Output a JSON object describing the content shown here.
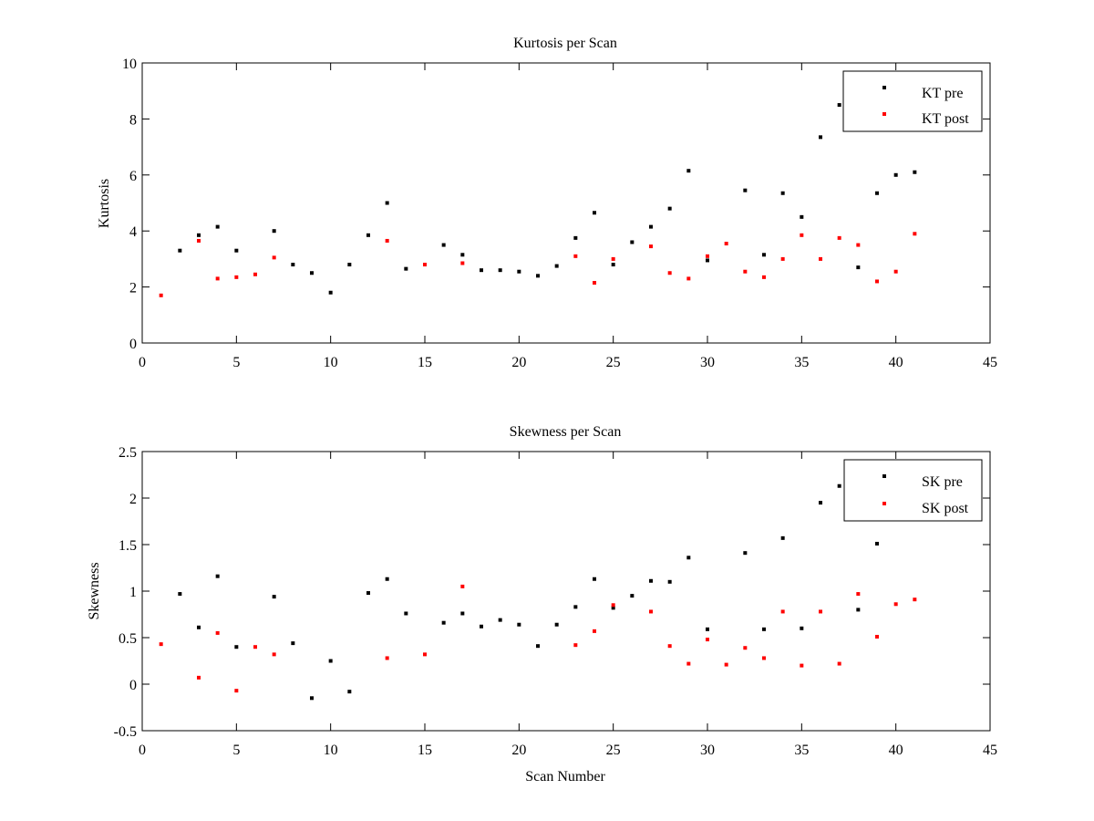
{
  "chart_data": [
    {
      "type": "scatter",
      "title": "Kurtosis per Scan",
      "xlabel": "",
      "ylabel": "Kurtosis",
      "xlim": [
        0,
        45
      ],
      "ylim": [
        0,
        10
      ],
      "xticks": [
        0,
        5,
        10,
        15,
        20,
        25,
        30,
        35,
        40,
        45
      ],
      "yticks": [
        0,
        2,
        4,
        6,
        8,
        10
      ],
      "xtick_labels": [
        "0",
        "5",
        "10",
        "15",
        "20",
        "25",
        "30",
        "35",
        "40",
        "45"
      ],
      "ytick_labels": [
        "0",
        "2",
        "4",
        "6",
        "8",
        "10"
      ],
      "grid": false,
      "legend_position": "top-right",
      "series": [
        {
          "name": "KT pre",
          "color": "#000000",
          "points": [
            [
              2,
              3.3
            ],
            [
              3,
              3.85
            ],
            [
              4,
              4.15
            ],
            [
              5,
              3.3
            ],
            [
              7,
              4.0
            ],
            [
              8,
              2.8
            ],
            [
              9,
              2.5
            ],
            [
              10,
              1.8
            ],
            [
              11,
              2.8
            ],
            [
              12,
              3.85
            ],
            [
              13,
              5.0
            ],
            [
              14,
              2.65
            ],
            [
              16,
              3.5
            ],
            [
              17,
              3.15
            ],
            [
              18,
              2.6
            ],
            [
              19,
              2.6
            ],
            [
              20,
              2.55
            ],
            [
              21,
              2.4
            ],
            [
              22,
              2.75
            ],
            [
              23,
              3.75
            ],
            [
              24,
              4.65
            ],
            [
              25,
              2.8
            ],
            [
              26,
              3.6
            ],
            [
              27,
              4.15
            ],
            [
              28,
              4.8
            ],
            [
              29,
              6.15
            ],
            [
              30,
              2.95
            ],
            [
              32,
              5.45
            ],
            [
              33,
              3.15
            ],
            [
              34,
              5.35
            ],
            [
              35,
              4.5
            ],
            [
              36,
              7.35
            ],
            [
              37,
              8.5
            ],
            [
              38,
              2.7
            ],
            [
              39,
              5.35
            ],
            [
              40,
              6.0
            ],
            [
              41,
              6.1
            ]
          ]
        },
        {
          "name": "KT post",
          "color": "#ff0000",
          "points": [
            [
              1,
              1.7
            ],
            [
              3,
              3.65
            ],
            [
              4,
              2.3
            ],
            [
              5,
              2.35
            ],
            [
              6,
              2.45
            ],
            [
              7,
              3.05
            ],
            [
              13,
              3.65
            ],
            [
              15,
              2.8
            ],
            [
              17,
              2.85
            ],
            [
              23,
              3.1
            ],
            [
              24,
              2.15
            ],
            [
              25,
              3.0
            ],
            [
              27,
              3.45
            ],
            [
              28,
              2.5
            ],
            [
              29,
              2.3
            ],
            [
              30,
              3.1
            ],
            [
              31,
              3.55
            ],
            [
              32,
              2.55
            ],
            [
              33,
              2.35
            ],
            [
              34,
              3.0
            ],
            [
              35,
              3.85
            ],
            [
              36,
              3.0
            ],
            [
              37,
              3.75
            ],
            [
              38,
              3.5
            ],
            [
              39,
              2.2
            ],
            [
              40,
              2.55
            ],
            [
              41,
              3.9
            ]
          ]
        }
      ]
    },
    {
      "type": "scatter",
      "title": "Skewness per Scan",
      "xlabel": "Scan Number",
      "ylabel": "Skewness",
      "xlim": [
        0,
        45
      ],
      "ylim": [
        -0.5,
        2.5
      ],
      "xticks": [
        0,
        5,
        10,
        15,
        20,
        25,
        30,
        35,
        40,
        45
      ],
      "yticks": [
        -0.5,
        0,
        0.5,
        1,
        1.5,
        2,
        2.5
      ],
      "xtick_labels": [
        "0",
        "5",
        "10",
        "15",
        "20",
        "25",
        "30",
        "35",
        "40",
        "45"
      ],
      "ytick_labels": [
        "-0.5",
        "0",
        "0.5",
        "1",
        "1.5",
        "2",
        "2.5"
      ],
      "grid": false,
      "legend_position": "top-right",
      "series": [
        {
          "name": "SK pre",
          "color": "#000000",
          "points": [
            [
              2,
              0.97
            ],
            [
              3,
              0.61
            ],
            [
              4,
              1.16
            ],
            [
              5,
              0.4
            ],
            [
              7,
              0.94
            ],
            [
              8,
              0.44
            ],
            [
              9,
              -0.15
            ],
            [
              10,
              0.25
            ],
            [
              11,
              -0.08
            ],
            [
              12,
              0.98
            ],
            [
              13,
              1.13
            ],
            [
              14,
              0.76
            ],
            [
              16,
              0.66
            ],
            [
              17,
              0.76
            ],
            [
              18,
              0.62
            ],
            [
              19,
              0.69
            ],
            [
              20,
              0.64
            ],
            [
              21,
              0.41
            ],
            [
              22,
              0.64
            ],
            [
              23,
              0.83
            ],
            [
              24,
              1.13
            ],
            [
              25,
              0.82
            ],
            [
              26,
              0.95
            ],
            [
              27,
              1.11
            ],
            [
              28,
              1.1
            ],
            [
              29,
              1.36
            ],
            [
              30,
              0.59
            ],
            [
              32,
              1.41
            ],
            [
              33,
              0.59
            ],
            [
              34,
              1.57
            ],
            [
              35,
              0.6
            ],
            [
              36,
              1.95
            ],
            [
              37,
              2.13
            ],
            [
              38,
              0.8
            ],
            [
              39,
              1.51
            ]
          ]
        },
        {
          "name": "SK post",
          "color": "#ff0000",
          "points": [
            [
              1,
              0.43
            ],
            [
              3,
              0.07
            ],
            [
              4,
              0.55
            ],
            [
              5,
              -0.07
            ],
            [
              6,
              0.4
            ],
            [
              7,
              0.32
            ],
            [
              13,
              0.28
            ],
            [
              15,
              0.32
            ],
            [
              17,
              1.05
            ],
            [
              23,
              0.42
            ],
            [
              24,
              0.57
            ],
            [
              25,
              0.85
            ],
            [
              27,
              0.78
            ],
            [
              28,
              0.41
            ],
            [
              29,
              0.22
            ],
            [
              30,
              0.48
            ],
            [
              31,
              0.21
            ],
            [
              32,
              0.39
            ],
            [
              33,
              0.28
            ],
            [
              34,
              0.78
            ],
            [
              35,
              0.2
            ],
            [
              36,
              0.78
            ],
            [
              37,
              0.22
            ],
            [
              38,
              0.97
            ],
            [
              39,
              0.51
            ],
            [
              40,
              0.86
            ],
            [
              41,
              0.91
            ]
          ]
        }
      ]
    }
  ]
}
